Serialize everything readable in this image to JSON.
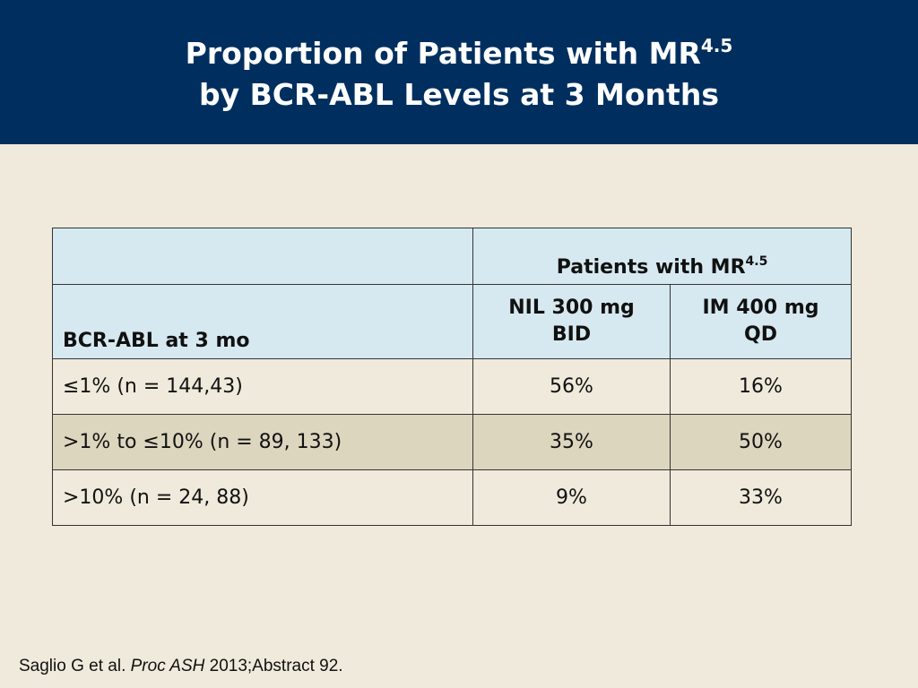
{
  "slide": {
    "title_line1_prefix": "Proportion of Patients with MR",
    "title_line1_sup": "4.5",
    "title_line2": "by BCR-ABL Levels at 3 Months"
  },
  "table": {
    "group_header_prefix": "Patients with MR",
    "group_header_sup": "4.5",
    "row_header": "BCR-ABL at 3 mo",
    "arm1_line1": "NIL 300 mg",
    "arm1_line2": "BID",
    "arm2_line1": "IM 400 mg",
    "arm2_line2": "QD",
    "rows": [
      {
        "label": "≤1% (n = 144,43)",
        "nil": "56%",
        "im": "16%"
      },
      {
        "label": ">1% to ≤10% (n = 89, 133)",
        "nil": "35%",
        "im": "50%"
      },
      {
        "label": ">10% (n = 24, 88)",
        "nil": "9%",
        "im": "33%"
      }
    ]
  },
  "footnote": {
    "authors": "Saglio G et al. ",
    "journal": "Proc ASH",
    "rest": " 2013;Abstract 92."
  },
  "colors": {
    "title_bar": "#002f5f",
    "background": "#efeadb",
    "header_fill": "#d6e9f1",
    "header_text": "#1f3f7a",
    "alt_row": "#ddd6bf"
  }
}
